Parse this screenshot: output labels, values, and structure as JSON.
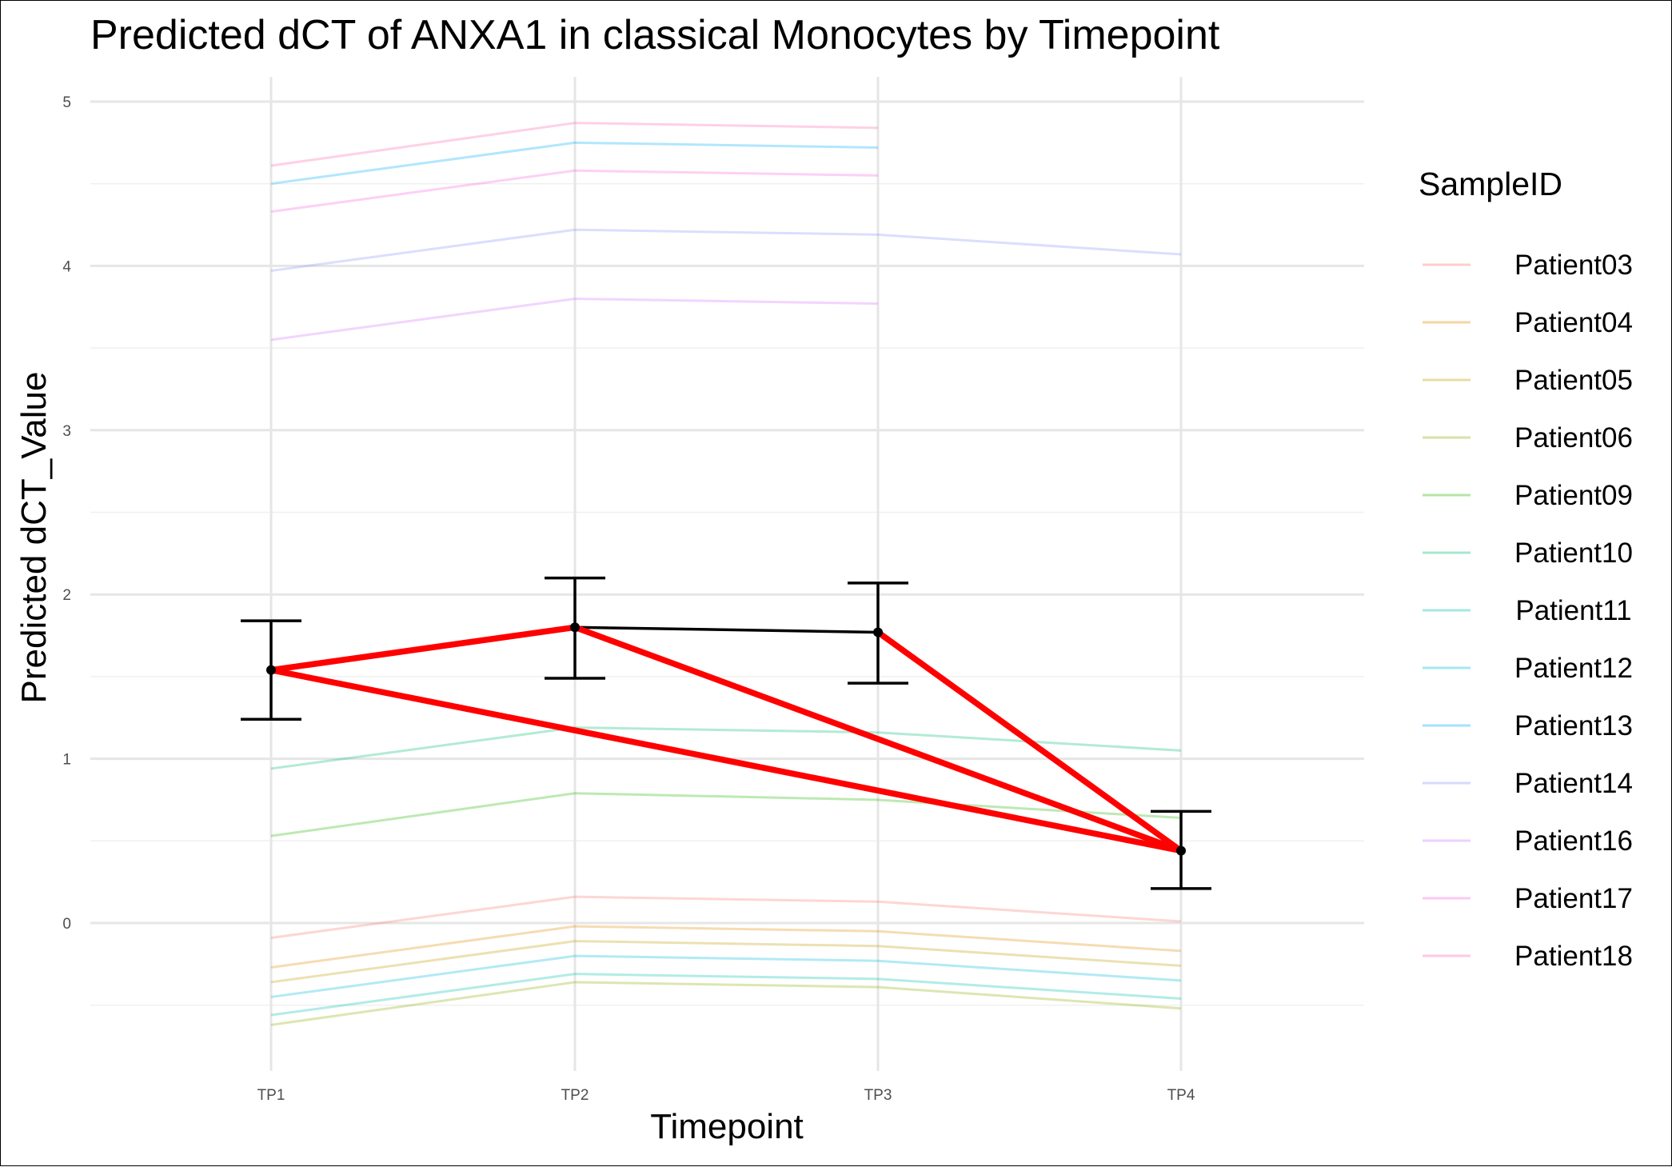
{
  "chart_data": {
    "type": "line",
    "title": "Predicted dCT of  ANXA1 in  classical  Monocytes by Timepoint",
    "xlabel": "Timepoint",
    "ylabel": "Predicted dCT_Value",
    "categories": [
      "TP1",
      "TP2",
      "TP3",
      "TP4"
    ],
    "ylim": [
      -0.9,
      5.15
    ],
    "yticks": [
      0,
      1,
      2,
      3,
      4,
      5
    ],
    "grid": true,
    "legend": {
      "title": "SampleID",
      "position": "right"
    },
    "series": [
      {
        "name": "Patient03",
        "color": "#F8766D",
        "values": [
          -0.09,
          0.16,
          0.13,
          0.01
        ]
      },
      {
        "name": "Patient04",
        "color": "#E18A00",
        "values": [
          -0.27,
          -0.02,
          -0.05,
          -0.17
        ]
      },
      {
        "name": "Patient05",
        "color": "#BE9C00",
        "values": [
          -0.36,
          -0.11,
          -0.14,
          -0.26
        ]
      },
      {
        "name": "Patient06",
        "color": "#8CAB00",
        "values": [
          -0.62,
          -0.36,
          -0.39,
          -0.52
        ]
      },
      {
        "name": "Patient09",
        "color": "#24B700",
        "values": [
          0.53,
          0.79,
          0.75,
          0.64
        ]
      },
      {
        "name": "Patient10",
        "color": "#00BE70",
        "values": [
          0.94,
          1.19,
          1.16,
          1.05
        ]
      },
      {
        "name": "Patient11",
        "color": "#00C1AB",
        "values": [
          -0.56,
          -0.31,
          -0.34,
          -0.46
        ]
      },
      {
        "name": "Patient12",
        "color": "#00BBDA",
        "values": [
          -0.45,
          -0.2,
          -0.23,
          -0.35
        ]
      },
      {
        "name": "Patient13",
        "color": "#00ACFC",
        "values": [
          4.5,
          4.75,
          4.72,
          null
        ]
      },
      {
        "name": "Patient14",
        "color": "#8B93FF",
        "values": [
          3.97,
          4.22,
          4.19,
          4.07
        ]
      },
      {
        "name": "Patient16",
        "color": "#D575FE",
        "values": [
          3.55,
          3.8,
          3.77,
          null
        ]
      },
      {
        "name": "Patient17",
        "color": "#F962DD",
        "values": [
          4.33,
          4.58,
          4.55,
          null
        ]
      },
      {
        "name": "Patient18",
        "color": "#FF65AC",
        "values": [
          4.61,
          4.87,
          4.84,
          null
        ]
      }
    ],
    "mean": {
      "values": [
        1.54,
        1.8,
        1.77,
        0.44
      ],
      "ci_lower": [
        1.24,
        1.49,
        1.46,
        0.21
      ],
      "ci_upper": [
        1.84,
        2.1,
        2.07,
        0.68
      ],
      "color": "#000000"
    },
    "highlight_segments": {
      "color": "#FF0000",
      "pairs": [
        [
          "TP1",
          "TP2"
        ],
        [
          "TP1",
          "TP4"
        ],
        [
          "TP2",
          "TP4"
        ],
        [
          "TP3",
          "TP4"
        ]
      ]
    }
  }
}
